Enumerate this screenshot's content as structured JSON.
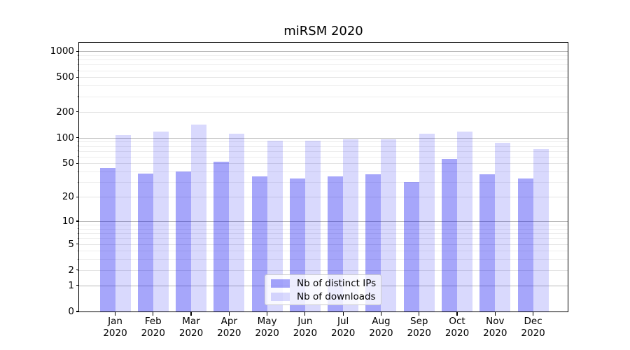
{
  "figure": {
    "title": "miRSM 2020"
  },
  "y_axis": {
    "tick_labels": [
      "0",
      "1",
      "2",
      "5",
      "10",
      "20",
      "50",
      "100",
      "200",
      "500",
      "1000"
    ]
  },
  "x_axis": {
    "tick_labels": [
      [
        "Jan",
        "2020"
      ],
      [
        "Feb",
        "2020"
      ],
      [
        "Mar",
        "2020"
      ],
      [
        "Apr",
        "2020"
      ],
      [
        "May",
        "2020"
      ],
      [
        "Jun",
        "2020"
      ],
      [
        "Jul",
        "2020"
      ],
      [
        "Aug",
        "2020"
      ],
      [
        "Sep",
        "2020"
      ],
      [
        "Oct",
        "2020"
      ],
      [
        "Nov",
        "2020"
      ],
      [
        "Dec",
        "2020"
      ]
    ]
  },
  "legend": {
    "items": [
      {
        "label": "Nb of distinct IPs",
        "color": "rgba(0,0,240,0.35)"
      },
      {
        "label": "Nb of downloads",
        "color": "rgba(0,0,240,0.15)"
      }
    ]
  },
  "chart_data": {
    "type": "bar",
    "title": "miRSM 2020",
    "categories": [
      "Jan 2020",
      "Feb 2020",
      "Mar 2020",
      "Apr 2020",
      "May 2020",
      "Jun 2020",
      "Jul 2020",
      "Aug 2020",
      "Sep 2020",
      "Oct 2020",
      "Nov 2020",
      "Dec 2020"
    ],
    "series": [
      {
        "name": "Nb of distinct IPs",
        "color": "rgba(0,0,240,0.35)",
        "values": [
          44,
          38,
          40,
          52,
          35,
          33,
          35,
          37,
          30,
          56,
          37,
          33
        ]
      },
      {
        "name": "Nb of downloads",
        "color": "rgba(0,0,240,0.15)",
        "values": [
          107,
          117,
          143,
          111,
          92,
          92,
          96,
          96,
          112,
          118,
          87,
          73
        ]
      }
    ],
    "xlabel": "",
    "ylabel": "",
    "y_scale": "log1p",
    "y_ticks": [
      0,
      1,
      2,
      5,
      10,
      20,
      50,
      100,
      200,
      500,
      1000
    ],
    "ylim": [
      0,
      1270
    ],
    "grid": true,
    "legend_position": "inside lower center"
  }
}
